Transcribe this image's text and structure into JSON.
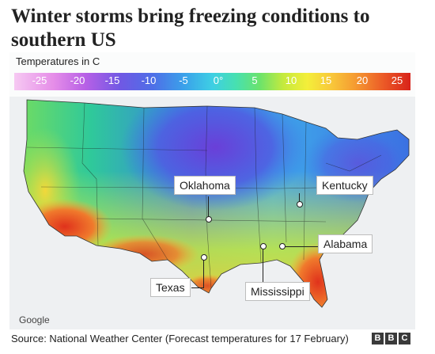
{
  "title": "Winter storms bring freezing conditions to southern US",
  "legend": {
    "title": "Temperatures in C",
    "ticks": [
      "-25",
      "-20",
      "-15",
      "-10",
      "-5",
      "0°",
      "5",
      "10",
      "15",
      "20",
      "25"
    ]
  },
  "labels": {
    "oklahoma": "Oklahoma",
    "kentucky": "Kentucky",
    "alabama": "Alabama",
    "texas": "Texas",
    "mississippi": "Mississippi"
  },
  "map_attribution": "Google",
  "source": "Source: National Weather Center (Forecast temperatures for 17 February)",
  "brand": [
    "B",
    "B",
    "C"
  ],
  "colors": {
    "cold_extreme": "#7a3fd6",
    "cold": "#3a66e0",
    "freezing": "#3ecfe4",
    "mild": "#6ce36b",
    "warm": "#f4ee3a",
    "hot": "#e03a1e"
  }
}
